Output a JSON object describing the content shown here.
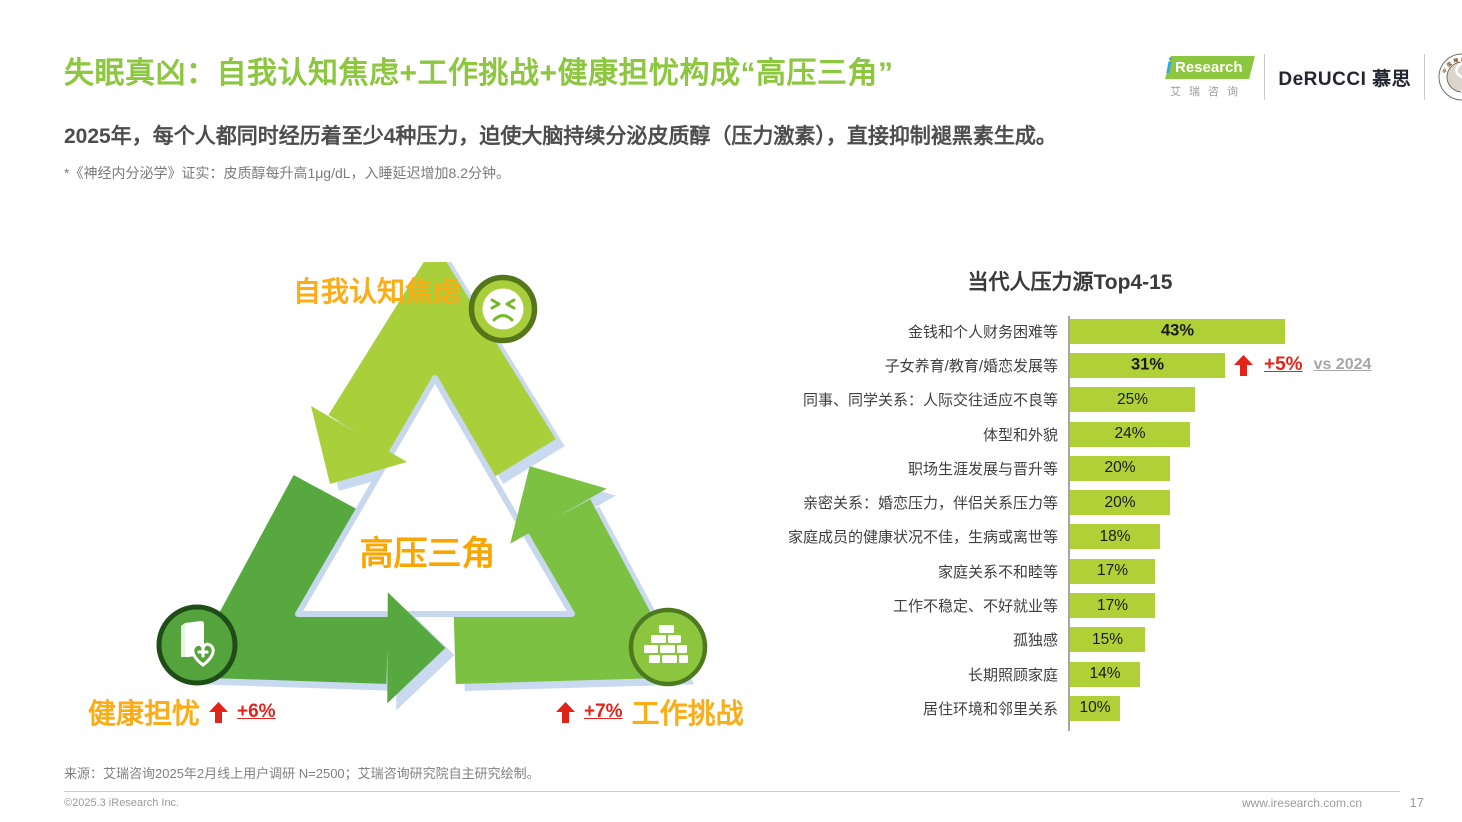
{
  "slide": {
    "title": "失眠真凶：自我认知焦虑+工作挑战+健康担忧构成“高压三角”",
    "subtitle": "2025年，每个人都同时经历着至少4种压力，迫使大脑持续分泌皮质醇（压力激素），直接抑制褪黑素生成。",
    "footnote": "*《神经内分泌学》证实：皮质醇每升高1μg/dL，入睡延迟增加8.2分钟。",
    "source": "来源：艾瑞咨询2025年2月线上用户调研 N=2500；艾瑞咨询研究院自主研究绘制。",
    "copyright": "©2025.3 iResearch Inc.",
    "website": "www.iresearch.com.cn",
    "page_number": "17"
  },
  "logos": {
    "iresearch_i": "i",
    "iresearch_en": "Research",
    "iresearch_cn": "艾瑞咨询",
    "derucci": "DeRUCCI 慕思",
    "seal_cn": "中国睡眠研究会",
    "seal_en": "Chinese Sleep Research Society"
  },
  "triangle": {
    "center_label": "高压三角",
    "top_label": "自我认知焦虑",
    "bottom_left_label": "健康担忧",
    "bottom_left_delta": "+6%",
    "bottom_right_label": "工作挑战",
    "bottom_right_delta": "+7%",
    "colors": {
      "top_band": "#A9CF3B",
      "right_band": "#7CC142",
      "left_band": "#56A83F",
      "shadow_blue": "#C9D9F0",
      "label_orange": "#FBAD18",
      "delta_red": "#E2231A"
    }
  },
  "chart_data": {
    "type": "bar",
    "orientation": "horizontal",
    "title": "当代人压力源Top4-15",
    "unit": "%",
    "categories": [
      "金钱和个人财务困难等",
      "子女养育/教育/婚恋发展等",
      "同事、同学关系：人际交往适应不良等",
      "体型和外貌",
      "职场生涯发展与晋升等",
      "亲密关系：婚恋压力，伴侣关系压力等",
      "家庭成员的健康状况不佳，生病或离世等",
      "家庭关系不和睦等",
      "工作不稳定、不好就业等",
      "孤独感",
      "长期照顾家庭",
      "居住环境和邻里关系"
    ],
    "values": [
      43,
      31,
      25,
      24,
      20,
      20,
      18,
      17,
      17,
      15,
      14,
      10
    ],
    "value_labels": [
      "43%",
      "31%",
      "25%",
      "24%",
      "20%",
      "20%",
      "18%",
      "17%",
      "17%",
      "15%",
      "14%",
      "10%"
    ],
    "bold_rows": [
      0,
      1
    ],
    "annotation": {
      "row": 1,
      "delta": "+5%",
      "compare_label": "vs 2024"
    },
    "bar_color": "#AFD036",
    "xlim": [
      0,
      50
    ],
    "grid": false,
    "legend": false
  }
}
